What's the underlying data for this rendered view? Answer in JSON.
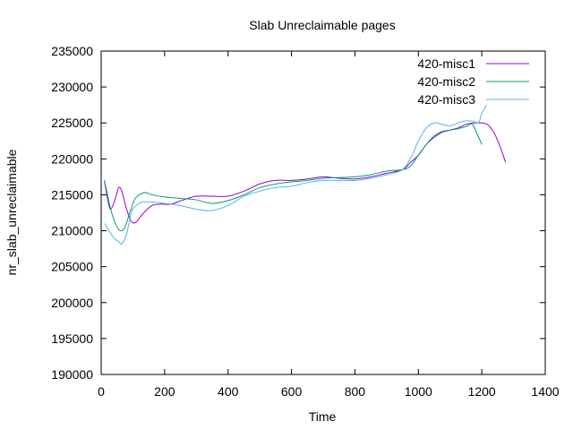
{
  "chart_data": {
    "type": "line",
    "title": "Slab Unreclaimable pages",
    "xlabel": "Time",
    "ylabel": "nr_slab_unreclaimable",
    "xlim": [
      0,
      1400
    ],
    "ylim": [
      190000,
      235000
    ],
    "xticks": [
      0,
      200,
      400,
      600,
      800,
      1000,
      1200,
      1400
    ],
    "yticks": [
      190000,
      195000,
      200000,
      205000,
      210000,
      215000,
      220000,
      225000,
      230000,
      235000
    ],
    "grid": false,
    "legend_position": "top-right",
    "series": [
      {
        "name": "420-misc1",
        "color": "#9400d3",
        "x": [
          10,
          20,
          30,
          45,
          55,
          65,
          80,
          95,
          110,
          130,
          160,
          190,
          220,
          260,
          300,
          350,
          400,
          450,
          500,
          550,
          600,
          650,
          700,
          750,
          800,
          850,
          900,
          950,
          975,
          1000,
          1025,
          1050,
          1075,
          1100,
          1125,
          1150,
          1175,
          1200,
          1220,
          1240,
          1255,
          1265,
          1275
        ],
        "y": [
          217000,
          214500,
          213000,
          214500,
          216000,
          215500,
          213000,
          211300,
          211200,
          212300,
          213500,
          213700,
          213700,
          214300,
          214800,
          214800,
          214800,
          215500,
          216500,
          217000,
          217000,
          217200,
          217500,
          217300,
          217200,
          217500,
          218000,
          218500,
          219500,
          220500,
          222000,
          223000,
          223700,
          224000,
          224300,
          224800,
          225000,
          225000,
          224700,
          223500,
          222000,
          220800,
          219500
        ]
      },
      {
        "name": "420-misc2",
        "color": "#009e73",
        "x": [
          10,
          20,
          30,
          45,
          60,
          75,
          90,
          105,
          120,
          140,
          160,
          200,
          250,
          300,
          350,
          400,
          450,
          500,
          550,
          600,
          650,
          700,
          750,
          800,
          850,
          900,
          950,
          975,
          1000,
          1025,
          1050,
          1075,
          1100,
          1125,
          1150,
          1170,
          1185,
          1200
        ],
        "y": [
          217000,
          215000,
          213000,
          211000,
          210000,
          210500,
          212500,
          214300,
          215000,
          215300,
          215000,
          214700,
          214500,
          214300,
          213800,
          214200,
          215000,
          216000,
          216500,
          216800,
          217000,
          217300,
          217400,
          217500,
          217800,
          218300,
          218500,
          219000,
          220500,
          222000,
          223200,
          223800,
          224000,
          224200,
          224500,
          224800,
          223500,
          222000
        ]
      },
      {
        "name": "420-misc3",
        "color": "#56b4e9",
        "x": [
          10,
          25,
          40,
          55,
          65,
          80,
          95,
          110,
          130,
          160,
          200,
          250,
          300,
          350,
          400,
          450,
          500,
          550,
          600,
          650,
          700,
          750,
          800,
          850,
          900,
          950,
          980,
          1000,
          1025,
          1050,
          1075,
          1100,
          1125,
          1150,
          1175,
          1190,
          1200,
          1215
        ],
        "y": [
          211000,
          210000,
          209000,
          208500,
          208200,
          209500,
          212500,
          213500,
          214000,
          214000,
          213800,
          213500,
          213000,
          212800,
          213500,
          214800,
          215500,
          216000,
          216200,
          216700,
          217000,
          217000,
          217000,
          217300,
          217800,
          218500,
          220500,
          222500,
          224300,
          225000,
          224800,
          224600,
          225000,
          225300,
          225200,
          225000,
          226300,
          227500
        ]
      }
    ]
  }
}
